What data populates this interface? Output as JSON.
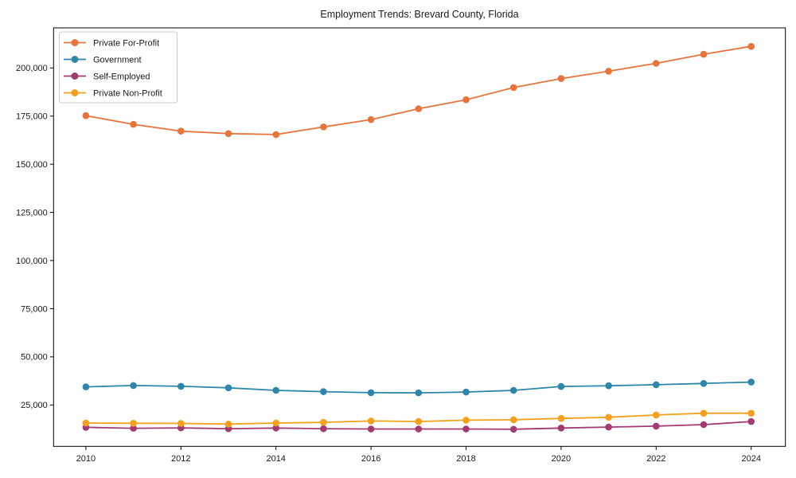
{
  "chart_data": {
    "type": "line",
    "title": "Employment Trends: Brevard County, Florida",
    "xlabel": "",
    "ylabel": "",
    "grid": false,
    "legend_position": "upper-left",
    "marker": "circle",
    "x": [
      2010,
      2011,
      2012,
      2013,
      2014,
      2015,
      2016,
      2017,
      2018,
      2019,
      2020,
      2021,
      2022,
      2023,
      2024
    ],
    "series": [
      {
        "name": "Private For-Profit",
        "color": "#e8743b",
        "values": [
          175200,
          170700,
          167200,
          165900,
          165400,
          169400,
          173200,
          178800,
          183500,
          189800,
          194500,
          198300,
          202400,
          207100,
          211200
        ]
      },
      {
        "name": "Government",
        "color": "#2e86ab",
        "values": [
          34400,
          35100,
          34700,
          33900,
          32600,
          31900,
          31400,
          31300,
          31700,
          32600,
          34600,
          35000,
          35500,
          36200,
          36900
        ]
      },
      {
        "name": "Self-Employed",
        "color": "#a23b72",
        "values": [
          13400,
          12900,
          13100,
          12700,
          13000,
          12700,
          12500,
          12500,
          12500,
          12400,
          13000,
          13500,
          14000,
          14800,
          16400
        ]
      },
      {
        "name": "Private Non-Profit",
        "color": "#f5a01b",
        "values": [
          15600,
          15500,
          15400,
          15100,
          15600,
          16000,
          16700,
          16400,
          17100,
          17300,
          18000,
          18600,
          19800,
          20700,
          20700
        ]
      }
    ],
    "xticks": [
      2010,
      2012,
      2014,
      2016,
      2018,
      2020,
      2022,
      2024
    ],
    "yticks": [
      25000,
      50000,
      75000,
      100000,
      125000,
      150000,
      175000,
      200000
    ],
    "ytick_format": "comma",
    "xlim": [
      2009.32,
      2024.72
    ],
    "ylim": [
      3500,
      220800
    ],
    "axis_color": "#000000",
    "legend_border_color": "#cccccc"
  }
}
